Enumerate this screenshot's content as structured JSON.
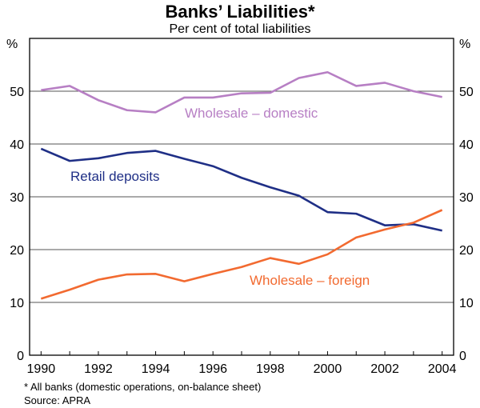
{
  "chart_data": {
    "type": "line",
    "title": "Banks’ Liabilities*",
    "subtitle": "Per cent of total liabilities",
    "ylabel_left": "%",
    "ylabel_right": "%",
    "ylim": [
      0,
      60
    ],
    "yticks": [
      0,
      10,
      20,
      30,
      40,
      50
    ],
    "xlim": [
      1989.6,
      2004.4
    ],
    "xticks": [
      1990,
      1992,
      1994,
      1996,
      1998,
      2000,
      2002,
      2004
    ],
    "grid": true,
    "x": [
      1990,
      1991,
      1992,
      1993,
      1994,
      1995,
      1996,
      1997,
      1998,
      1999,
      2000,
      2001,
      2002,
      2003,
      2004
    ],
    "series": [
      {
        "name": "Wholesale – domestic",
        "color": "#b77fc4",
        "values": [
          50.2,
          51.0,
          48.3,
          46.4,
          46.0,
          48.8,
          48.8,
          49.6,
          49.7,
          52.5,
          53.6,
          51.0,
          51.6,
          50.0,
          48.9
        ]
      },
      {
        "name": "Retail deposits",
        "color": "#1f2f86",
        "values": [
          39.1,
          36.8,
          37.3,
          38.3,
          38.7,
          37.2,
          35.8,
          33.6,
          31.8,
          30.2,
          27.1,
          26.8,
          24.6,
          24.8,
          23.6
        ]
      },
      {
        "name": "Wholesale – foreign",
        "color": "#f26a30",
        "values": [
          10.7,
          12.4,
          14.3,
          15.3,
          15.4,
          14.0,
          15.4,
          16.7,
          18.4,
          17.3,
          19.1,
          22.3,
          23.8,
          25.1,
          27.5
        ]
      }
    ],
    "notes": [
      "* All banks (domestic operations, on-balance sheet)",
      "Source: APRA"
    ]
  }
}
